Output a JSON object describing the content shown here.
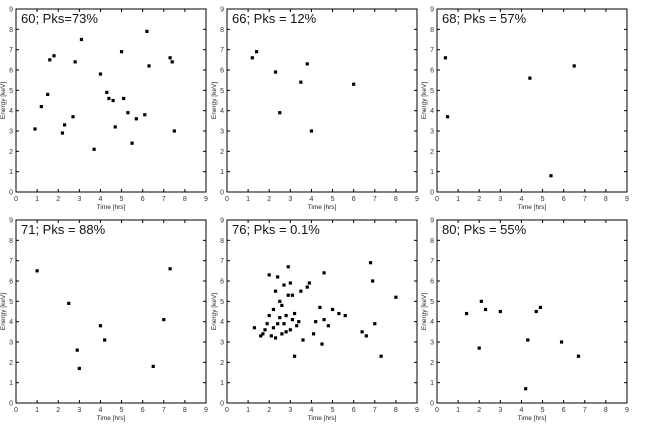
{
  "chart_data": [
    {
      "type": "scatter",
      "title": "60; Pks=73%",
      "xlabel": "Time [hrs]",
      "ylabel": "Energy [keV]",
      "xlim": [
        0,
        9
      ],
      "ylim": [
        0,
        9
      ],
      "xticks": [
        "0",
        "1",
        "2",
        "3",
        "4",
        "5",
        "6",
        "7",
        "8",
        "9"
      ],
      "yticks": [
        "0",
        "1",
        "2",
        "3",
        "4",
        "5",
        "6",
        "7",
        "8",
        "9"
      ],
      "points": [
        [
          0.9,
          3.1
        ],
        [
          1.2,
          4.2
        ],
        [
          1.5,
          4.8
        ],
        [
          1.6,
          6.5
        ],
        [
          1.8,
          6.7
        ],
        [
          2.2,
          2.9
        ],
        [
          2.3,
          3.3
        ],
        [
          2.7,
          3.7
        ],
        [
          2.8,
          6.4
        ],
        [
          3.1,
          7.5
        ],
        [
          3.7,
          2.1
        ],
        [
          4.0,
          5.8
        ],
        [
          4.3,
          4.9
        ],
        [
          4.4,
          4.6
        ],
        [
          4.6,
          4.5
        ],
        [
          4.7,
          3.2
        ],
        [
          5.0,
          6.9
        ],
        [
          5.1,
          4.6
        ],
        [
          5.3,
          3.9
        ],
        [
          5.5,
          2.4
        ],
        [
          5.7,
          3.6
        ],
        [
          6.1,
          3.8
        ],
        [
          6.2,
          7.9
        ],
        [
          6.3,
          6.2
        ],
        [
          7.3,
          6.6
        ],
        [
          7.4,
          6.4
        ],
        [
          7.5,
          3.0
        ]
      ]
    },
    {
      "type": "scatter",
      "title": "66; Pks = 12%",
      "xlabel": "Time [hrs]",
      "ylabel": "Energy [keV]",
      "xlim": [
        0,
        9
      ],
      "ylim": [
        0,
        9
      ],
      "xticks": [
        "0",
        "1",
        "2",
        "3",
        "4",
        "5",
        "6",
        "7",
        "8",
        "9"
      ],
      "yticks": [
        "0",
        "1",
        "2",
        "3",
        "4",
        "5",
        "6",
        "7",
        "8",
        "9"
      ],
      "points": [
        [
          1.2,
          6.6
        ],
        [
          1.4,
          6.9
        ],
        [
          2.3,
          5.9
        ],
        [
          2.5,
          3.9
        ],
        [
          3.5,
          5.4
        ],
        [
          3.8,
          6.3
        ],
        [
          4.0,
          3.0
        ],
        [
          6.0,
          5.3
        ]
      ]
    },
    {
      "type": "scatter",
      "title": "68; Pks = 57%",
      "xlabel": "Time [hrs]",
      "ylabel": "Energy [keV]",
      "xlim": [
        0,
        9
      ],
      "ylim": [
        0,
        9
      ],
      "xticks": [
        "0",
        "1",
        "2",
        "3",
        "4",
        "5",
        "6",
        "7",
        "8",
        "9"
      ],
      "yticks": [
        "0",
        "1",
        "2",
        "3",
        "4",
        "5",
        "6",
        "7",
        "8",
        "9"
      ],
      "points": [
        [
          0.4,
          6.6
        ],
        [
          0.5,
          3.7
        ],
        [
          4.4,
          5.6
        ],
        [
          5.4,
          0.8
        ],
        [
          6.5,
          6.2
        ]
      ]
    },
    {
      "type": "scatter",
      "title": "71; Pks = 88%",
      "xlabel": "Time [hrs]",
      "ylabel": "Energy [keV]",
      "xlim": [
        0,
        9
      ],
      "ylim": [
        0,
        9
      ],
      "xticks": [
        "0",
        "1",
        "2",
        "3",
        "4",
        "5",
        "6",
        "7",
        "8",
        "9"
      ],
      "yticks": [
        "0",
        "1",
        "2",
        "3",
        "4",
        "5",
        "6",
        "7",
        "8",
        "9"
      ],
      "points": [
        [
          1.0,
          6.5
        ],
        [
          2.5,
          4.9
        ],
        [
          2.9,
          2.6
        ],
        [
          3.0,
          1.7
        ],
        [
          4.0,
          3.8
        ],
        [
          4.2,
          3.1
        ],
        [
          6.5,
          1.8
        ],
        [
          7.0,
          4.1
        ],
        [
          7.3,
          6.6
        ]
      ]
    },
    {
      "type": "scatter",
      "title": "76; Pks = 0.1%",
      "xlabel": "Time [hrs]",
      "ylabel": "Energy [keV]",
      "xlim": [
        0,
        9
      ],
      "ylim": [
        0,
        9
      ],
      "xticks": [
        "0",
        "1",
        "2",
        "3",
        "4",
        "5",
        "6",
        "7",
        "8",
        "9"
      ],
      "yticks": [
        "0",
        "1",
        "2",
        "3",
        "4",
        "5",
        "6",
        "7",
        "8",
        "9"
      ],
      "points": [
        [
          1.3,
          3.7
        ],
        [
          1.6,
          3.3
        ],
        [
          1.7,
          3.4
        ],
        [
          1.8,
          3.6
        ],
        [
          1.9,
          3.9
        ],
        [
          2.0,
          4.3
        ],
        [
          2.0,
          6.3
        ],
        [
          2.1,
          3.3
        ],
        [
          2.2,
          3.7
        ],
        [
          2.2,
          4.6
        ],
        [
          2.3,
          3.2
        ],
        [
          2.3,
          5.5
        ],
        [
          2.4,
          3.9
        ],
        [
          2.4,
          6.2
        ],
        [
          2.5,
          4.2
        ],
        [
          2.5,
          5.0
        ],
        [
          2.6,
          3.4
        ],
        [
          2.6,
          4.8
        ],
        [
          2.7,
          5.8
        ],
        [
          2.7,
          3.9
        ],
        [
          2.8,
          4.3
        ],
        [
          2.8,
          3.5
        ],
        [
          2.9,
          5.3
        ],
        [
          2.9,
          6.7
        ],
        [
          3.0,
          3.6
        ],
        [
          3.0,
          5.9
        ],
        [
          3.1,
          4.1
        ],
        [
          3.1,
          5.3
        ],
        [
          3.2,
          4.4
        ],
        [
          3.2,
          2.3
        ],
        [
          3.3,
          3.8
        ],
        [
          3.4,
          4.0
        ],
        [
          3.5,
          5.5
        ],
        [
          3.6,
          3.1
        ],
        [
          3.8,
          5.7
        ],
        [
          3.9,
          5.9
        ],
        [
          4.1,
          3.4
        ],
        [
          4.2,
          4.0
        ],
        [
          4.4,
          4.7
        ],
        [
          4.5,
          2.9
        ],
        [
          4.6,
          6.4
        ],
        [
          4.6,
          4.1
        ],
        [
          4.8,
          3.8
        ],
        [
          5.0,
          4.6
        ],
        [
          5.3,
          4.4
        ],
        [
          5.6,
          4.3
        ],
        [
          6.4,
          3.5
        ],
        [
          6.6,
          3.3
        ],
        [
          6.8,
          6.9
        ],
        [
          6.9,
          6.0
        ],
        [
          7.0,
          3.9
        ],
        [
          7.3,
          2.3
        ],
        [
          8.0,
          5.2
        ]
      ]
    },
    {
      "type": "scatter",
      "title": "80; Pks = 55%",
      "xlabel": "Time [hrs]",
      "ylabel": "Energy [keV]",
      "xlim": [
        0,
        9
      ],
      "ylim": [
        0,
        9
      ],
      "xticks": [
        "0",
        "1",
        "2",
        "3",
        "4",
        "5",
        "6",
        "7",
        "8",
        "9"
      ],
      "yticks": [
        "0",
        "1",
        "2",
        "3",
        "4",
        "5",
        "6",
        "7",
        "8",
        "9"
      ],
      "points": [
        [
          1.4,
          4.4
        ],
        [
          2.0,
          2.7
        ],
        [
          2.1,
          5.0
        ],
        [
          2.3,
          4.6
        ],
        [
          3.0,
          4.5
        ],
        [
          4.2,
          0.7
        ],
        [
          4.3,
          3.1
        ],
        [
          4.7,
          4.5
        ],
        [
          4.9,
          4.7
        ],
        [
          5.9,
          3.0
        ],
        [
          6.7,
          2.3
        ]
      ]
    }
  ]
}
